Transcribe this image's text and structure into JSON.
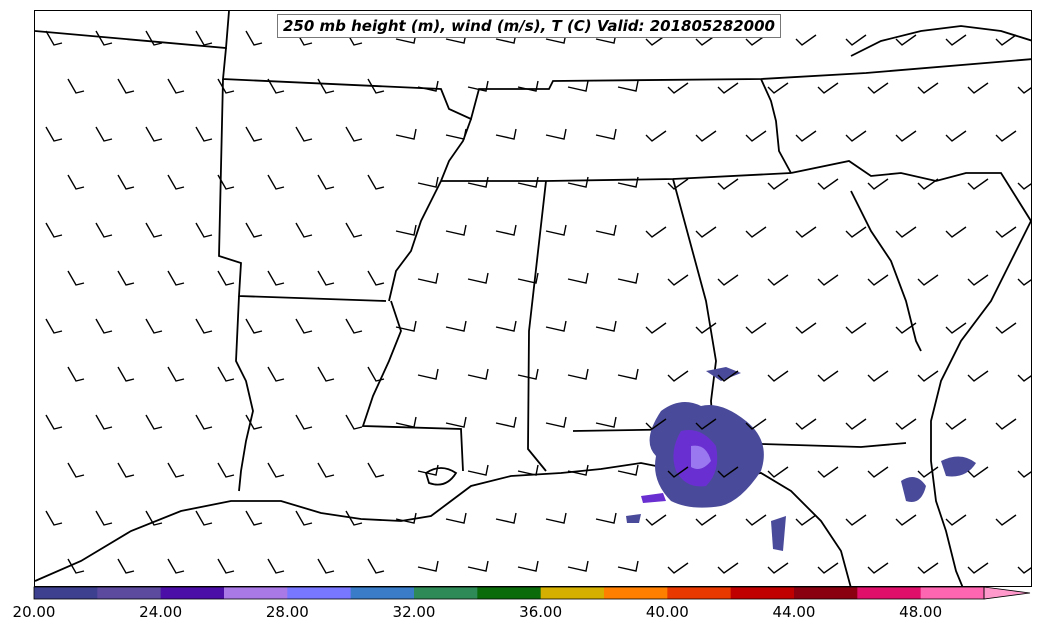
{
  "title": "250 mb height (m), wind (m/s), T (C) Valid: 201805282000",
  "colorbar": {
    "colors": [
      "#3d3f8f",
      "#5c4a9e",
      "#4b0ea6",
      "#a97ae6",
      "#7777ff",
      "#3a7cc7",
      "#2e8b57",
      "#0a6b0a",
      "#d6b000",
      "#ff8000",
      "#e83a00",
      "#c00000",
      "#8b0010",
      "#e0106a",
      "#ff66b2"
    ],
    "tick_labels": [
      "20.00",
      "24.00",
      "28.00",
      "32.00",
      "36.00",
      "40.00",
      "44.00",
      "48.00"
    ],
    "extend_color": "#ff99cc"
  },
  "map": {
    "coastline_color": "#000000",
    "contour_fill_colors": [
      "#4a4a9a",
      "#3d3fa0",
      "#6a2fd0",
      "#9a78f0"
    ],
    "barb_color": "#000000"
  }
}
